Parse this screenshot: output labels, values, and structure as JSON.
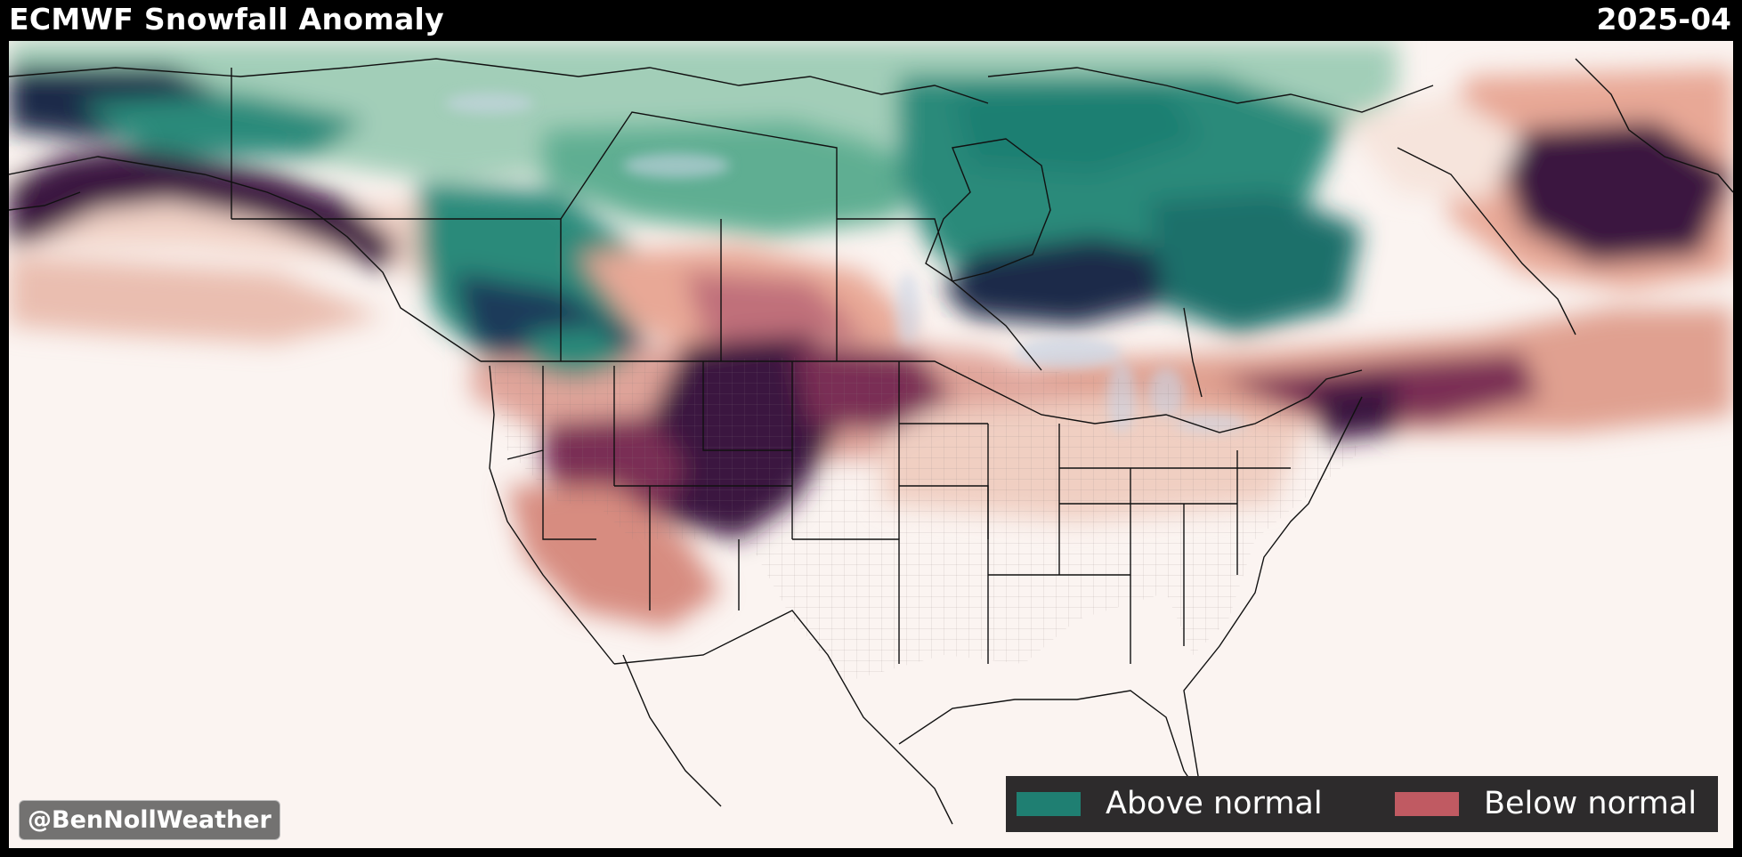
{
  "header": {
    "title": "ECMWF Snowfall Anomaly",
    "date": "2025-04"
  },
  "watermark": "@BenNollWeather",
  "legend": {
    "items": [
      {
        "label": "Above normal",
        "color": "#1f7f72"
      },
      {
        "label": "Below normal",
        "color": "#c05a62"
      }
    ]
  },
  "colors": {
    "ocean_background": "#fbf4f1",
    "strong_above": "#1a2a4a",
    "above": "#2a8a7a",
    "weak_above": "#7fbfa5",
    "weak_below": "#e8b8a8",
    "below": "#c0707a",
    "strong_below": "#3a1440",
    "lake": "#c9d6e6",
    "boundary": "#111111"
  }
}
